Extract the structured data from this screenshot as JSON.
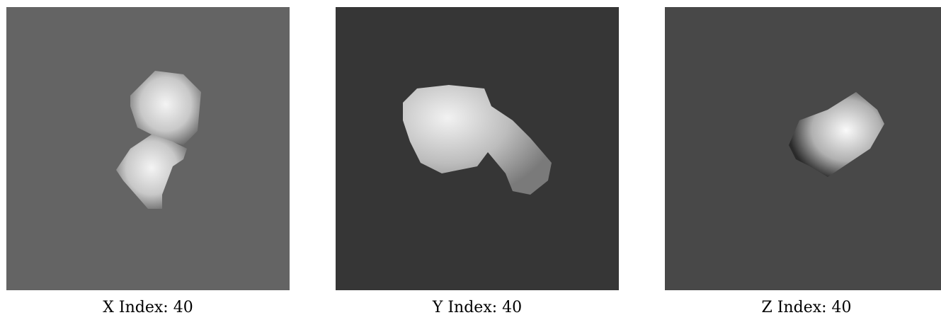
{
  "panels": [
    {
      "caption": "X Index: 40"
    },
    {
      "caption": "Y Index: 40"
    },
    {
      "caption": "Z Index: 40"
    }
  ]
}
